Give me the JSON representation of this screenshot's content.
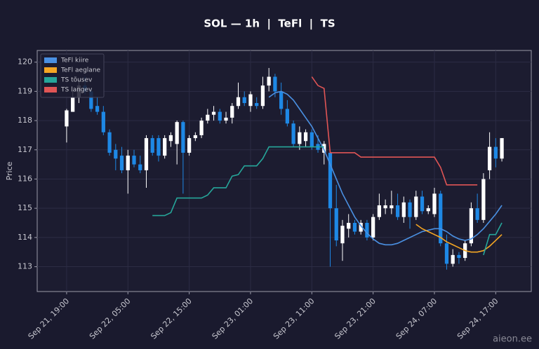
{
  "chart_data": {
    "type": "candlestick",
    "title": "SOL — 1h  |  TeFl  |  TS",
    "ylabel": "Price",
    "watermark": "aieon.ee",
    "x": [
      "Sep 21, 19:00",
      "Sep 21, 20:00",
      "Sep 21, 21:00",
      "Sep 21, 22:00",
      "Sep 21, 23:00",
      "Sep 22, 00:00",
      "Sep 22, 01:00",
      "Sep 22, 02:00",
      "Sep 22, 03:00",
      "Sep 22, 04:00",
      "Sep 22, 05:00",
      "Sep 22, 06:00",
      "Sep 22, 07:00",
      "Sep 22, 08:00",
      "Sep 22, 09:00",
      "Sep 22, 10:00",
      "Sep 22, 11:00",
      "Sep 22, 12:00",
      "Sep 22, 13:00",
      "Sep 22, 14:00",
      "Sep 22, 15:00",
      "Sep 22, 16:00",
      "Sep 22, 17:00",
      "Sep 22, 18:00",
      "Sep 22, 19:00",
      "Sep 22, 20:00",
      "Sep 22, 21:00",
      "Sep 22, 22:00",
      "Sep 22, 23:00",
      "Sep 23, 00:00",
      "Sep 23, 01:00",
      "Sep 23, 02:00",
      "Sep 23, 03:00",
      "Sep 23, 04:00",
      "Sep 23, 05:00",
      "Sep 23, 06:00",
      "Sep 23, 07:00",
      "Sep 23, 08:00",
      "Sep 23, 09:00",
      "Sep 23, 10:00",
      "Sep 23, 11:00",
      "Sep 23, 12:00",
      "Sep 23, 13:00",
      "Sep 23, 14:00",
      "Sep 23, 15:00",
      "Sep 23, 16:00",
      "Sep 23, 17:00",
      "Sep 23, 18:00",
      "Sep 23, 19:00",
      "Sep 23, 20:00",
      "Sep 23, 21:00",
      "Sep 23, 22:00",
      "Sep 23, 23:00",
      "Sep 24, 00:00",
      "Sep 24, 01:00",
      "Sep 24, 02:00",
      "Sep 24, 03:00",
      "Sep 24, 04:00",
      "Sep 24, 05:00",
      "Sep 24, 06:00",
      "Sep 24, 07:00",
      "Sep 24, 08:00",
      "Sep 24, 09:00",
      "Sep 24, 10:00",
      "Sep 24, 11:00",
      "Sep 24, 12:00",
      "Sep 24, 13:00",
      "Sep 24, 14:00",
      "Sep 24, 15:00",
      "Sep 24, 16:00",
      "Sep 24, 17:00",
      "Sep 24, 18:00"
    ],
    "open": [
      117.8,
      118.3,
      118.8,
      119.2,
      119.0,
      118.5,
      118.3,
      117.6,
      117.0,
      116.8,
      116.3,
      116.8,
      116.5,
      116.3,
      117.4,
      117.4,
      116.8,
      117.3,
      117.2,
      117.95,
      116.9,
      117.4,
      117.5,
      118.0,
      118.2,
      118.3,
      118.0,
      118.1,
      118.5,
      118.8,
      118.5,
      118.6,
      118.5,
      119.2,
      119.5,
      119.0,
      118.4,
      117.9,
      117.2,
      117.3,
      117.6,
      117.2,
      116.9,
      116.9,
      115.0,
      113.8,
      114.3,
      114.5,
      114.2,
      114.5,
      114.0,
      114.7,
      115.0,
      115.0,
      115.1,
      114.7,
      115.2,
      114.7,
      115.4,
      114.9,
      114.8,
      115.5,
      113.8,
      113.1,
      113.4,
      113.3,
      113.8,
      115.0,
      114.6,
      116.3,
      117.1,
      116.7
    ],
    "high": [
      118.4,
      119.0,
      119.4,
      119.5,
      119.1,
      118.8,
      118.5,
      117.7,
      117.2,
      117.1,
      117.0,
      117.0,
      116.8,
      117.5,
      117.5,
      117.5,
      117.5,
      117.6,
      118.0,
      118.0,
      117.5,
      117.6,
      118.1,
      118.4,
      118.5,
      118.4,
      118.3,
      118.6,
      119.3,
      119.0,
      119.0,
      118.8,
      119.5,
      119.8,
      119.6,
      119.3,
      118.7,
      118.0,
      117.8,
      117.7,
      117.7,
      117.5,
      117.3,
      117.0,
      115.8,
      114.6,
      114.8,
      114.6,
      114.6,
      114.6,
      114.8,
      115.5,
      115.3,
      115.6,
      115.5,
      115.4,
      115.3,
      115.6,
      115.6,
      115.1,
      115.7,
      115.6,
      114.1,
      113.6,
      113.5,
      113.9,
      115.2,
      115.5,
      116.2,
      117.6,
      117.4,
      117.4
    ],
    "low": [
      117.25,
      118.3,
      118.6,
      118.9,
      118.3,
      118.2,
      117.5,
      116.8,
      116.3,
      116.2,
      115.5,
      116.4,
      116.2,
      115.7,
      116.8,
      116.6,
      116.7,
      117.1,
      116.5,
      115.5,
      116.8,
      117.3,
      117.4,
      117.9,
      118.0,
      117.9,
      117.9,
      117.9,
      118.4,
      118.5,
      118.3,
      118.4,
      118.4,
      119.0,
      118.8,
      118.2,
      117.8,
      117.1,
      117.0,
      117.1,
      117.0,
      116.9,
      116.5,
      113.0,
      113.7,
      113.2,
      114.0,
      114.1,
      114.1,
      113.9,
      113.9,
      114.6,
      114.8,
      114.8,
      114.6,
      114.5,
      114.3,
      114.6,
      114.8,
      114.8,
      114.7,
      113.7,
      112.9,
      113.0,
      113.1,
      113.2,
      113.7,
      114.5,
      114.5,
      116.0,
      116.4,
      116.6
    ],
    "close": [
      118.35,
      118.8,
      119.2,
      119.0,
      118.4,
      118.3,
      117.6,
      116.9,
      116.7,
      116.3,
      116.8,
      116.5,
      116.3,
      117.4,
      116.9,
      116.8,
      117.4,
      117.5,
      117.95,
      116.9,
      117.4,
      117.5,
      118.0,
      118.2,
      118.3,
      118.0,
      118.1,
      118.5,
      118.8,
      118.6,
      118.9,
      118.5,
      119.2,
      119.5,
      119.0,
      118.4,
      117.9,
      117.2,
      117.6,
      117.6,
      117.1,
      117.0,
      117.2,
      115.0,
      113.9,
      114.4,
      114.5,
      114.2,
      114.5,
      114.0,
      114.7,
      115.1,
      115.1,
      115.1,
      114.7,
      115.2,
      114.7,
      115.4,
      114.9,
      115.0,
      115.5,
      113.8,
      113.1,
      113.4,
      113.3,
      113.8,
      115.0,
      114.6,
      116.0,
      117.1,
      116.7,
      117.4
    ],
    "up_color": "#ffffff",
    "down_color": "#1e88e5",
    "series": [
      {
        "name": "TeFl kiire",
        "color": "#4a90e2",
        "values": [
          null,
          null,
          null,
          null,
          null,
          null,
          null,
          null,
          null,
          null,
          null,
          null,
          null,
          null,
          null,
          null,
          null,
          null,
          null,
          null,
          null,
          null,
          null,
          null,
          null,
          null,
          null,
          null,
          null,
          null,
          null,
          null,
          null,
          118.8,
          118.95,
          119.0,
          118.9,
          118.7,
          118.4,
          118.1,
          117.8,
          117.4,
          117.0,
          116.5,
          116.0,
          115.5,
          115.1,
          114.7,
          114.4,
          114.15,
          113.95,
          113.8,
          113.75,
          113.75,
          113.8,
          113.9,
          114.0,
          114.1,
          114.2,
          114.25,
          114.3,
          114.3,
          114.2,
          114.05,
          113.95,
          113.9,
          113.95,
          114.1,
          114.3,
          114.55,
          114.8,
          115.1
        ]
      },
      {
        "name": "TeFl aeglane",
        "color": "#f5a623",
        "values": [
          null,
          null,
          null,
          null,
          null,
          null,
          null,
          null,
          null,
          null,
          null,
          null,
          null,
          null,
          null,
          null,
          null,
          null,
          null,
          null,
          null,
          null,
          null,
          null,
          null,
          null,
          null,
          null,
          null,
          null,
          null,
          null,
          null,
          null,
          null,
          null,
          null,
          null,
          null,
          null,
          null,
          null,
          null,
          null,
          null,
          null,
          null,
          null,
          null,
          null,
          null,
          null,
          null,
          null,
          null,
          null,
          null,
          114.45,
          114.3,
          114.2,
          114.1,
          114.0,
          113.85,
          113.75,
          113.65,
          113.55,
          113.5,
          113.5,
          113.55,
          113.7,
          113.9,
          114.1
        ]
      },
      {
        "name": "TS tõusev",
        "color": "#26a69a",
        "values": [
          null,
          null,
          null,
          null,
          null,
          null,
          null,
          null,
          null,
          null,
          null,
          null,
          null,
          null,
          114.75,
          114.75,
          114.75,
          114.85,
          115.35,
          115.35,
          115.35,
          115.35,
          115.35,
          115.45,
          115.7,
          115.7,
          115.7,
          116.1,
          116.15,
          116.45,
          116.45,
          116.45,
          116.7,
          117.1,
          117.1,
          117.1,
          117.1,
          117.1,
          117.1,
          117.1,
          117.1,
          117.1,
          117.1,
          null,
          null,
          null,
          null,
          null,
          null,
          null,
          null,
          null,
          null,
          null,
          null,
          null,
          null,
          null,
          null,
          null,
          null,
          null,
          null,
          null,
          null,
          null,
          null,
          null,
          113.4,
          114.1,
          114.1,
          114.5
        ]
      },
      {
        "name": "TS langev",
        "color": "#e05555",
        "values": [
          null,
          null,
          null,
          null,
          null,
          null,
          null,
          null,
          null,
          null,
          null,
          null,
          null,
          null,
          null,
          null,
          null,
          null,
          null,
          null,
          null,
          null,
          null,
          null,
          null,
          null,
          null,
          null,
          null,
          null,
          null,
          null,
          null,
          null,
          null,
          null,
          null,
          null,
          null,
          null,
          119.5,
          119.2,
          119.1,
          116.9,
          116.9,
          116.9,
          116.9,
          116.9,
          116.75,
          116.75,
          116.75,
          116.75,
          116.75,
          116.75,
          116.75,
          116.75,
          116.75,
          116.75,
          116.75,
          116.75,
          116.75,
          116.4,
          115.8,
          115.8,
          115.8,
          115.8,
          115.8,
          115.8,
          null,
          null,
          null,
          null
        ]
      }
    ],
    "ylim": [
      112.15,
      120.4
    ],
    "yticks": [
      113,
      114,
      115,
      116,
      117,
      118,
      119,
      120
    ],
    "xticks": [
      "Sep 21, 19:00",
      "Sep 22, 05:00",
      "Sep 22, 15:00",
      "Sep 23, 01:00",
      "Sep 23, 11:00",
      "Sep 23, 21:00",
      "Sep 24, 07:00",
      "Sep 24, 17:00"
    ],
    "grid": true,
    "legend": "upper left"
  }
}
